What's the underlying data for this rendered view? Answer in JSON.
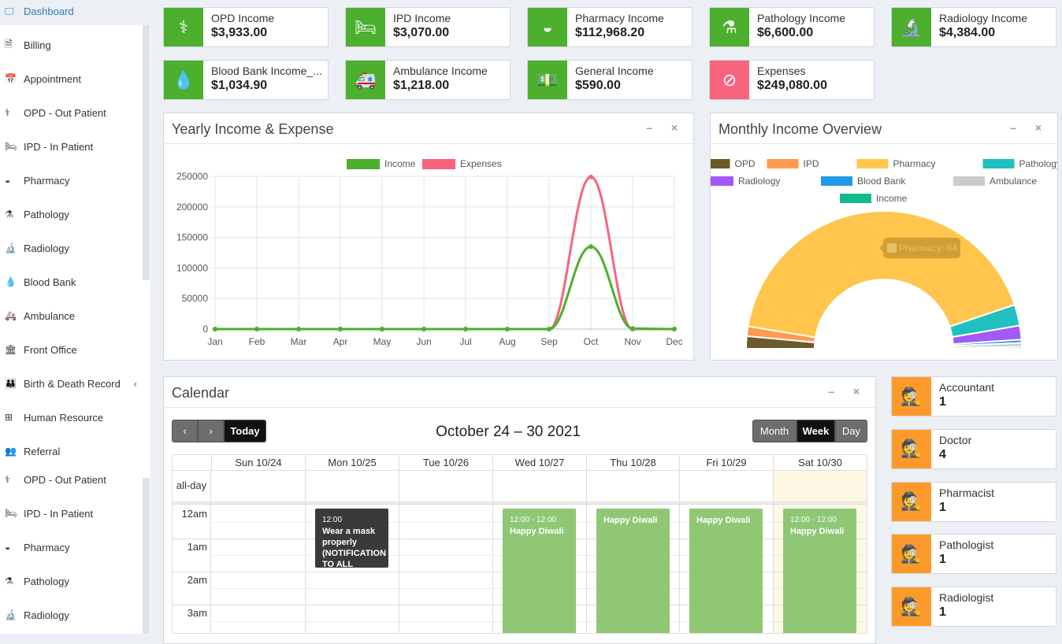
{
  "sidebar": {
    "items": [
      {
        "label": "Dashboard",
        "icon": "monitor-icon",
        "g": "🖵"
      },
      {
        "label": "Billing",
        "icon": "file-icon",
        "g": "🗎"
      },
      {
        "label": "Appointment",
        "icon": "calendar-check-icon",
        "g": "📅"
      },
      {
        "label": "OPD - Out Patient",
        "icon": "stethoscope-icon",
        "g": "⚕"
      },
      {
        "label": "IPD - In Patient",
        "icon": "bed-icon",
        "g": "🛏"
      },
      {
        "label": "Pharmacy",
        "icon": "mortar-pestle-icon",
        "g": "◒"
      },
      {
        "label": "Pathology",
        "icon": "flask-icon",
        "g": "⚗"
      },
      {
        "label": "Radiology",
        "icon": "microscope-icon",
        "g": "🔬"
      },
      {
        "label": "Blood Bank",
        "icon": "tint-icon",
        "g": "💧"
      },
      {
        "label": "Ambulance",
        "icon": "ambulance-icon",
        "g": "🚑"
      },
      {
        "label": "Front Office",
        "icon": "building-icon",
        "g": "🏛"
      },
      {
        "label": "Birth & Death Record",
        "icon": "family-icon",
        "g": "👪",
        "chev": "‹"
      },
      {
        "label": "Human Resource",
        "icon": "sitemap-icon",
        "g": "⊞"
      },
      {
        "label": "Referral",
        "icon": "users-icon",
        "g": "👥"
      },
      {
        "label": "OPD - Out Patient",
        "icon": "stethoscope-icon",
        "g": "⚕"
      },
      {
        "label": "IPD - In Patient",
        "icon": "bed-icon",
        "g": "🛏"
      },
      {
        "label": "Pharmacy",
        "icon": "mortar-pestle-icon",
        "g": "◒"
      },
      {
        "label": "Pathology",
        "icon": "flask-icon",
        "g": "⚗"
      },
      {
        "label": "Radiology",
        "icon": "microscope-icon",
        "g": "🔬"
      }
    ]
  },
  "cards": [
    {
      "label": "OPD Income",
      "value": "$3,933.00",
      "icon": "stethoscope-icon",
      "g": "⚕",
      "color": "#4caf2e"
    },
    {
      "label": "IPD Income",
      "value": "$3,070.00",
      "icon": "bed-icon",
      "g": "🛏",
      "color": "#4caf2e"
    },
    {
      "label": "Pharmacy Income",
      "value": "$112,968.20",
      "icon": "mortar-pestle-icon",
      "g": "◒",
      "color": "#4caf2e"
    },
    {
      "label": "Pathology Income",
      "value": "$6,600.00",
      "icon": "flask-icon",
      "g": "⚗",
      "color": "#4caf2e"
    },
    {
      "label": "Radiology Income",
      "value": "$4,384.00",
      "icon": "microscope-icon",
      "g": "🔬",
      "color": "#4caf2e"
    },
    {
      "label": "Blood Bank Income_...",
      "value": "$1,034.90",
      "icon": "tint-icon",
      "g": "💧",
      "color": "#4caf2e"
    },
    {
      "label": "Ambulance Income",
      "value": "$1,218.00",
      "icon": "ambulance-icon",
      "g": "🚑",
      "color": "#4caf2e"
    },
    {
      "label": "General Income",
      "value": "$590.00",
      "icon": "money-icon",
      "g": "💵",
      "color": "#4caf2e"
    },
    {
      "label": "Expenses",
      "value": "$249,080.00",
      "icon": "no-money-icon",
      "g": "⊘",
      "color": "#f8637e"
    }
  ],
  "yearly": {
    "title": "Yearly Income & Expense",
    "tools": "– ×"
  },
  "monthly": {
    "title": "Monthly Income Overview",
    "tools": "– ×",
    "tooltip": "Pharmacy: 84"
  },
  "chart_data": [
    {
      "type": "line",
      "title": "",
      "xlabel": "",
      "ylabel": "",
      "categories": [
        "Jan",
        "Feb",
        "Mar",
        "Apr",
        "May",
        "Jun",
        "Jul",
        "Aug",
        "Sep",
        "Oct",
        "Nov",
        "Dec"
      ],
      "yticks": [
        "0",
        "50000",
        "100000",
        "150000",
        "200000",
        "250000"
      ],
      "ylim": [
        0,
        250000
      ],
      "grid": true,
      "legend": "top",
      "series": [
        {
          "name": "Income",
          "color": "#4caf2e",
          "values": [
            0,
            0,
            0,
            0,
            0,
            0,
            0,
            0,
            0,
            135000,
            1000,
            0
          ]
        },
        {
          "name": "Expenses",
          "color": "#f8637e",
          "values": [
            0,
            0,
            0,
            0,
            0,
            0,
            0,
            0,
            0,
            249080,
            0,
            0
          ]
        }
      ]
    },
    {
      "type": "pie",
      "subtype": "half-doughnut",
      "legend": "top",
      "labels": [
        "OPD",
        "IPD",
        "Pharmacy",
        "Pathology",
        "Radiology",
        "Blood Bank",
        "Ambulance",
        "Income"
      ],
      "values": [
        3933,
        3070,
        112968.2,
        6600,
        4384,
        1034.9,
        1218,
        590
      ],
      "colors": [
        "#6d5a2a",
        "#fd9b4e",
        "#ffc54d",
        "#20c0c0",
        "#a259f7",
        "#1e9be6",
        "#c9cbcf",
        "#14b88a"
      ]
    }
  ],
  "calendar": {
    "title": "Calendar",
    "tools": "– ×",
    "range": "October 24 – 30 2021",
    "prev": "‹",
    "next": "›",
    "today": "Today",
    "views": [
      "Month",
      "Week",
      "Day"
    ],
    "days": [
      "Sun 10/24",
      "Mon 10/25",
      "Tue 10/26",
      "Wed 10/27",
      "Thu 10/28",
      "Fri 10/29",
      "Sat 10/30"
    ],
    "allday": "all-day",
    "times": [
      "12am",
      "1am",
      "2am",
      "3am"
    ],
    "events": [
      {
        "day": 1,
        "time": "12:00",
        "title": "Wear a mask properly (NOTIFICATION TO ALL STAFF",
        "color": "#3a3a3a"
      },
      {
        "day": 3,
        "time": "12:00 - 12:00",
        "title": "Happy Diwali",
        "color": "#8fc775"
      },
      {
        "day": 4,
        "time": "",
        "title": "Happy Diwali",
        "color": "#8fc775"
      },
      {
        "day": 5,
        "time": "",
        "title": "Happy Diwali",
        "color": "#8fc775"
      },
      {
        "day": 6,
        "time": "12:00 - 12:00",
        "title": "Happy Diwali",
        "color": "#8fc775"
      }
    ]
  },
  "staff": [
    {
      "role": "Accountant",
      "count": "1"
    },
    {
      "role": "Doctor",
      "count": "4"
    },
    {
      "role": "Pharmacist",
      "count": "1"
    },
    {
      "role": "Pathologist",
      "count": "1"
    },
    {
      "role": "Radiologist",
      "count": "1"
    }
  ],
  "staff_color": "#fb9a2a"
}
